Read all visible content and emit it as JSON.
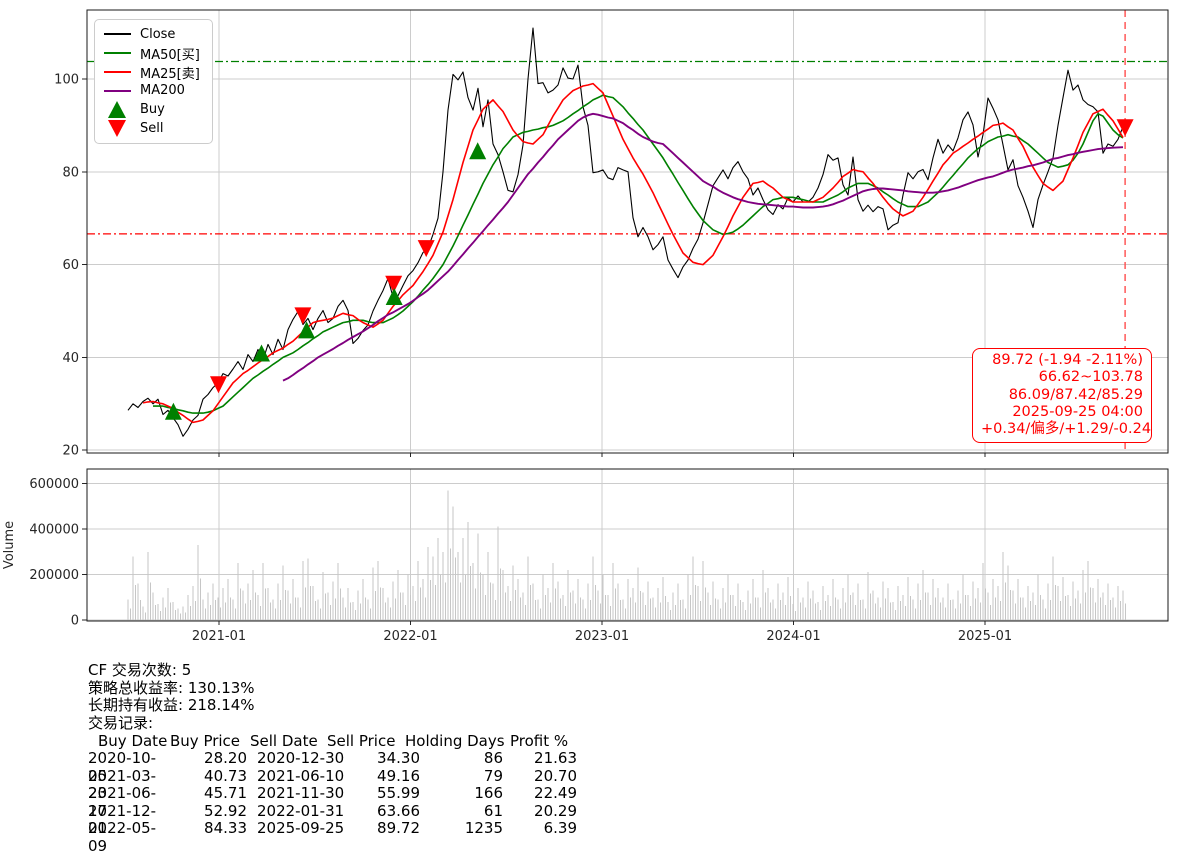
{
  "chart": {
    "legend": {
      "items": [
        {
          "label": "Close",
          "type": "line",
          "color": "#000000"
        },
        {
          "label": "MA50[买]",
          "type": "line",
          "color": "#008000"
        },
        {
          "label": "MA25[卖]",
          "type": "line",
          "color": "#ff0000"
        },
        {
          "label": "MA200",
          "type": "line",
          "color": "#800080"
        },
        {
          "label": "Buy",
          "type": "triangle-up",
          "color": "#008000"
        },
        {
          "label": "Sell",
          "type": "triangle-down",
          "color": "#ff0000"
        }
      ]
    },
    "annotation": {
      "color": "#ff0000",
      "lines": [
        "89.72 (-1.94 -2.11%)",
        "66.62~103.78",
        "86.09/87.42/85.29",
        "2025-09-25 04:00",
        "+0.34/偏多/+1.29/-0.24"
      ]
    }
  },
  "chart_data": {
    "type": "line",
    "title": "",
    "x_axis": {
      "tick_labels": [
        "2021-01",
        "2022-01",
        "2023-01",
        "2024-01",
        "2025-01"
      ],
      "tick_years": [
        2021,
        2022,
        2023,
        2024,
        2025
      ]
    },
    "price_axis": {
      "ticks": [
        20,
        40,
        60,
        80,
        100
      ],
      "range": [
        17,
        115
      ]
    },
    "volume_axis": {
      "ticks": [
        0,
        200000,
        400000,
        600000
      ],
      "label": "Volume",
      "range": [
        0,
        660000
      ]
    },
    "t0": 2020.5248,
    "dt": 0.02611,
    "series": [
      {
        "name": "Close",
        "color": "#000000",
        "width": 1.1,
        "values": [
          28.6,
          30,
          29.2,
          30.5,
          31.2,
          30,
          31,
          27.7,
          28.6,
          27,
          25.5,
          23,
          24.5,
          26.5,
          27.5,
          31,
          32,
          33.5,
          34.5,
          36.5,
          36,
          37.5,
          39.1,
          37.4,
          40.6,
          39.1,
          41.7,
          39.4,
          42.8,
          40.6,
          43.9,
          41.7,
          46,
          48.2,
          49.9,
          47.1,
          48.4,
          46,
          48.4,
          50.1,
          47.5,
          48.4,
          51,
          52.3,
          50.1,
          43,
          44.1,
          45.8,
          47,
          50,
          52.3,
          54.4,
          57,
          53,
          53.3,
          55.5,
          57.6,
          58.7,
          60.4,
          62.6,
          63.5,
          66.5,
          70,
          80,
          93.3,
          101,
          99.8,
          101.5,
          96,
          93.3,
          98,
          89.7,
          95.5,
          86,
          83.7,
          80,
          76,
          75.7,
          79.4,
          85.8,
          100,
          111,
          99,
          99.2,
          97,
          97.6,
          98.7,
          102.4,
          100.2,
          100,
          103,
          94,
          90,
          79.8,
          80,
          80.4,
          78.7,
          78.3,
          80.9,
          80.4,
          80,
          70.1,
          66,
          68,
          66,
          63.2,
          64.3,
          66,
          61,
          59,
          57.2,
          59.5,
          61,
          63.5,
          65.5,
          69,
          73,
          77,
          78.7,
          80.4,
          78.5,
          80.9,
          82.2,
          80,
          78.5,
          75,
          76.5,
          74,
          71.8,
          70.8,
          72.9,
          72,
          74.4,
          73.5,
          74.8,
          73.5,
          73.5,
          74.5,
          76.5,
          79.4,
          83.7,
          82.5,
          83,
          77.2,
          75,
          83.2,
          74,
          71.5,
          72.8,
          71.4,
          72.5,
          72,
          67.5,
          68.5,
          69,
          75,
          79.8,
          78.5,
          80,
          80.5,
          78.3,
          83,
          87,
          84,
          85.8,
          84.5,
          87.3,
          91.2,
          92.9,
          90.1,
          83.2,
          88,
          95.9,
          93.7,
          91.2,
          85.8,
          80.4,
          82.6,
          77,
          74.5,
          71.5,
          68,
          74,
          77.2,
          80,
          83,
          90,
          96,
          101.9,
          97.6,
          98.7,
          95.5,
          94.5,
          94,
          92.9,
          84,
          86,
          85.5,
          87,
          89.72
        ]
      },
      {
        "name": "MA50[买]",
        "color": "#008000",
        "width": 1.6,
        "values": [
          null,
          null,
          null,
          null,
          null,
          29.5,
          29.5,
          29.5,
          29.2,
          29,
          28.7,
          28.5,
          28.2,
          28,
          28,
          28,
          28.2,
          28.5,
          29,
          29.5,
          30.5,
          31.5,
          32.5,
          33.5,
          34.5,
          35.5,
          36.2,
          37,
          37.7,
          38.5,
          39.2,
          40,
          40.5,
          41,
          41.7,
          42.5,
          43.2,
          44,
          44.7,
          45.5,
          46,
          46.5,
          47,
          47.5,
          47.7,
          48,
          48,
          48,
          47.7,
          47.5,
          47.5,
          47.5,
          48,
          48.5,
          49.2,
          50,
          51,
          52,
          53.2,
          54.5,
          55.7,
          57,
          58.5,
          60,
          62,
          64,
          66.2,
          68.5,
          70.7,
          73,
          75.2,
          77.5,
          79.5,
          81.5,
          83.2,
          85,
          86.2,
          87.5,
          88,
          88.5,
          88.7,
          89,
          89.2,
          89.5,
          89.7,
          90,
          90.5,
          91,
          91.7,
          92.5,
          93.2,
          94,
          94.7,
          95.5,
          96,
          96.5,
          96.2,
          96,
          95,
          94,
          92.7,
          91.5,
          90.2,
          89,
          87.5,
          86,
          84.5,
          83,
          81.2,
          79.5,
          77.7,
          76,
          74.2,
          72.5,
          71,
          69.5,
          68.5,
          67.5,
          67,
          66.5,
          66.7,
          67,
          67.7,
          68.5,
          69.5,
          70.5,
          71.5,
          72.5,
          73.2,
          74,
          74.2,
          74.5,
          74.5,
          74.5,
          74.2,
          74,
          73.7,
          73.5,
          73.5,
          73.5,
          74,
          74.5,
          75,
          75.7,
          76.5,
          77,
          77.5,
          77.5,
          77.5,
          77,
          76.5,
          75.7,
          75,
          74.2,
          73.5,
          73,
          72.5,
          72.5,
          72.5,
          73,
          73.5,
          74.5,
          75.5,
          76.7,
          78,
          79.2,
          80.5,
          81.7,
          83,
          84,
          85,
          85.7,
          86.5,
          87,
          87.5,
          87.7,
          88,
          87.7,
          87.5,
          86.7,
          86,
          85,
          84,
          83,
          82,
          81.5,
          81,
          81.2,
          81.5,
          82.5,
          84,
          86,
          88.5,
          91,
          92.5,
          92,
          90.5,
          89,
          88,
          87.3
        ]
      },
      {
        "name": "MA25[卖]",
        "color": "#ff0000",
        "width": 1.6,
        "values": [
          null,
          null,
          null,
          30.2,
          30.4,
          30.5,
          30.2,
          30,
          29.5,
          29,
          28.2,
          27.5,
          26.7,
          26,
          26.2,
          26.5,
          27.5,
          28.5,
          30,
          31.5,
          33,
          34.5,
          35.5,
          36.5,
          37.2,
          38,
          38.8,
          39.5,
          40.2,
          41,
          41.5,
          42,
          42.8,
          43.5,
          44.5,
          45.5,
          46.5,
          47.5,
          47.8,
          48,
          48.2,
          48.5,
          49,
          49.5,
          49.2,
          49,
          48.2,
          47.5,
          47,
          46.5,
          47.2,
          48,
          49.5,
          51,
          52.2,
          53.5,
          54.5,
          55.5,
          57,
          58.5,
          60.2,
          62,
          64.5,
          67,
          70.5,
          74,
          78,
          82,
          85.5,
          89,
          91.2,
          93.5,
          94.5,
          95.5,
          94.2,
          93,
          91,
          89,
          87.7,
          86.5,
          86.2,
          86,
          87,
          88,
          90,
          92,
          93.7,
          95.5,
          96.5,
          97.5,
          98,
          98.5,
          98.7,
          99,
          98,
          97,
          94.5,
          92,
          89.5,
          87,
          85,
          83,
          81.2,
          79.5,
          77.5,
          75.5,
          73.2,
          71,
          68.7,
          66.5,
          64.5,
          62.5,
          61.5,
          60.5,
          60.2,
          60,
          61,
          62,
          64,
          66,
          68.2,
          70.5,
          72.5,
          74.5,
          76,
          77.5,
          77.7,
          78,
          77.2,
          76.5,
          75.5,
          74.5,
          74,
          73.5,
          73.5,
          73.5,
          73.5,
          73.5,
          74,
          74.5,
          75.5,
          76.5,
          77.7,
          79,
          79.7,
          80.5,
          80.2,
          80,
          78.7,
          77.5,
          76,
          74.5,
          73.2,
          72,
          71.2,
          70.5,
          71,
          71.5,
          73,
          74.5,
          76.2,
          78,
          79.7,
          81.5,
          82.7,
          84,
          84.7,
          85.5,
          86.2,
          87,
          87.7,
          88.5,
          89.2,
          90,
          90.2,
          90.5,
          89.7,
          89,
          87.2,
          85.5,
          83.2,
          81,
          79.2,
          77.5,
          76.7,
          76,
          77,
          78,
          80.5,
          83,
          85.7,
          88.5,
          90.5,
          92.5,
          93,
          93.5,
          92.2,
          91,
          89.2,
          87.4
        ]
      },
      {
        "name": "MA200",
        "color": "#800080",
        "width": 1.9,
        "values": [
          null,
          null,
          null,
          null,
          null,
          null,
          null,
          null,
          null,
          null,
          null,
          null,
          null,
          null,
          null,
          null,
          null,
          null,
          null,
          null,
          null,
          null,
          null,
          null,
          null,
          null,
          null,
          null,
          null,
          null,
          null,
          35,
          35.5,
          36.2,
          37,
          37.7,
          38.5,
          39.2,
          40,
          40.6,
          41.2,
          41.8,
          42.5,
          43.1,
          43.8,
          44.4,
          45,
          45.6,
          46.3,
          47,
          47.8,
          48.5,
          49.2,
          49.7,
          50.3,
          50.9,
          51.5,
          52.2,
          53,
          53.7,
          54.5,
          55.5,
          56.5,
          57.5,
          58.5,
          59.7,
          61,
          62.2,
          63.5,
          64.7,
          66,
          67.2,
          68.5,
          69.7,
          71,
          72.2,
          73.5,
          75,
          76.5,
          78,
          79.5,
          80.7,
          82,
          83.2,
          84.5,
          85.7,
          87,
          88,
          89,
          90,
          91,
          91.7,
          92.2,
          92.5,
          92.3,
          92,
          91.7,
          91.5,
          91,
          90.5,
          89.7,
          89,
          88.2,
          87.5,
          87,
          86.5,
          86.2,
          86,
          85,
          84,
          83,
          82,
          81,
          80,
          79,
          78,
          77.4,
          76.8,
          76.1,
          75.5,
          75,
          74.5,
          74.1,
          73.8,
          73.5,
          73.3,
          73.1,
          73,
          72.9,
          72.8,
          72.7,
          72.6,
          72.5,
          72.5,
          72.4,
          72.3,
          72.3,
          72.3,
          72.4,
          72.5,
          72.7,
          73,
          73.4,
          73.8,
          74.3,
          74.8,
          75.3,
          75.8,
          76.1,
          76.3,
          76.4,
          76.4,
          76.3,
          76.2,
          76.1,
          76,
          75.8,
          75.7,
          75.6,
          75.5,
          75.5,
          75.5,
          75.6,
          75.8,
          76,
          76.3,
          76.6,
          77,
          77.4,
          77.8,
          78.2,
          78.5,
          78.8,
          79,
          79.4,
          79.8,
          80.2,
          80.5,
          80.7,
          80.9,
          81.2,
          81.4,
          81.7,
          82,
          82.4,
          82.8,
          83,
          83.3,
          83.6,
          83.8,
          84.1,
          84.3,
          84.5,
          84.7,
          84.9,
          85,
          85.1,
          85.2,
          85.25,
          85.3
        ]
      }
    ],
    "volume": {
      "color": "#c6c6c6",
      "values": [
        90000,
        280000,
        160000,
        60000,
        300000,
        120000,
        70000,
        100000,
        140000,
        80000,
        50000,
        60000,
        110000,
        150000,
        330000,
        90000,
        120000,
        160000,
        100000,
        140000,
        180000,
        90000,
        250000,
        130000,
        160000,
        220000,
        110000,
        250000,
        140000,
        90000,
        160000,
        240000,
        130000,
        180000,
        100000,
        260000,
        270000,
        150000,
        90000,
        210000,
        120000,
        170000,
        250000,
        100000,
        140000,
        80000,
        130000,
        180000,
        90000,
        230000,
        260000,
        140000,
        100000,
        170000,
        220000,
        120000,
        200000,
        150000,
        260000,
        180000,
        320000,
        280000,
        360000,
        300000,
        570000,
        500000,
        300000,
        360000,
        430000,
        250000,
        380000,
        200000,
        300000,
        160000,
        410000,
        220000,
        150000,
        240000,
        180000,
        120000,
        280000,
        160000,
        90000,
        200000,
        140000,
        250000,
        170000,
        110000,
        220000,
        130000,
        180000,
        90000,
        160000,
        280000,
        130000,
        200000,
        110000,
        250000,
        160000,
        90000,
        180000,
        140000,
        230000,
        120000,
        170000,
        100000,
        140000,
        190000,
        80000,
        120000,
        160000,
        90000,
        200000,
        280000,
        150000,
        260000,
        120000,
        170000,
        90000,
        140000,
        200000,
        110000,
        160000,
        80000,
        130000,
        180000,
        100000,
        220000,
        140000,
        90000,
        160000,
        120000,
        190000,
        70000,
        140000,
        100000,
        170000,
        130000,
        80000,
        150000,
        110000,
        180000,
        90000,
        140000,
        200000,
        120000,
        160000,
        90000,
        210000,
        130000,
        100000,
        170000,
        140000,
        80000,
        150000,
        110000,
        190000,
        90000,
        160000,
        220000,
        120000,
        180000,
        140000,
        100000,
        160000,
        90000,
        130000,
        200000,
        110000,
        170000,
        140000,
        250000,
        120000,
        180000,
        150000,
        300000,
        240000,
        130000,
        180000,
        100000,
        150000,
        120000,
        200000,
        90000,
        160000,
        280000,
        150000,
        190000,
        110000,
        170000,
        130000,
        220000,
        260000,
        140000,
        180000,
        120000,
        160000,
        100000,
        150000,
        130000
      ]
    },
    "hlines": [
      {
        "y": 103.78,
        "color": "#008000",
        "style": "dashdot"
      },
      {
        "y": 66.62,
        "color": "#ff0000",
        "style": "dashdot"
      }
    ],
    "vline": {
      "date": "2025-09-25",
      "color": "#ff4d4d",
      "style": "dashed"
    },
    "markers": {
      "buy_color": "#008000",
      "sell_color": "#ff0000"
    }
  },
  "stats": {
    "lines": [
      "CF 交易次数: 5",
      "策略总收益率: 130.13%",
      "长期持有收益: 218.14%",
      "交易记录:"
    ]
  },
  "trades": {
    "header": [
      "Buy Date",
      "Buy Price",
      "Sell Date",
      "Sell Price",
      "Holding Days",
      "Profit %"
    ],
    "rows": [
      {
        "buy_date": "2020-10-05",
        "buy_price": "28.20",
        "sell_date": "2020-12-30",
        "sell_price": "34.30",
        "holding_days": "86",
        "profit_pct": "21.63"
      },
      {
        "buy_date": "2021-03-23",
        "buy_price": "40.73",
        "sell_date": "2021-06-10",
        "sell_price": "49.16",
        "holding_days": "79",
        "profit_pct": "20.70"
      },
      {
        "buy_date": "2021-06-17",
        "buy_price": "45.71",
        "sell_date": "2021-11-30",
        "sell_price": "55.99",
        "holding_days": "166",
        "profit_pct": "22.49"
      },
      {
        "buy_date": "2021-12-01",
        "buy_price": "52.92",
        "sell_date": "2022-01-31",
        "sell_price": "63.66",
        "holding_days": "61",
        "profit_pct": "20.29"
      },
      {
        "buy_date": "2022-05-09",
        "buy_price": "84.33",
        "sell_date": "2025-09-25",
        "sell_price": "89.72",
        "holding_days": "1235",
        "profit_pct": "6.39"
      }
    ]
  }
}
